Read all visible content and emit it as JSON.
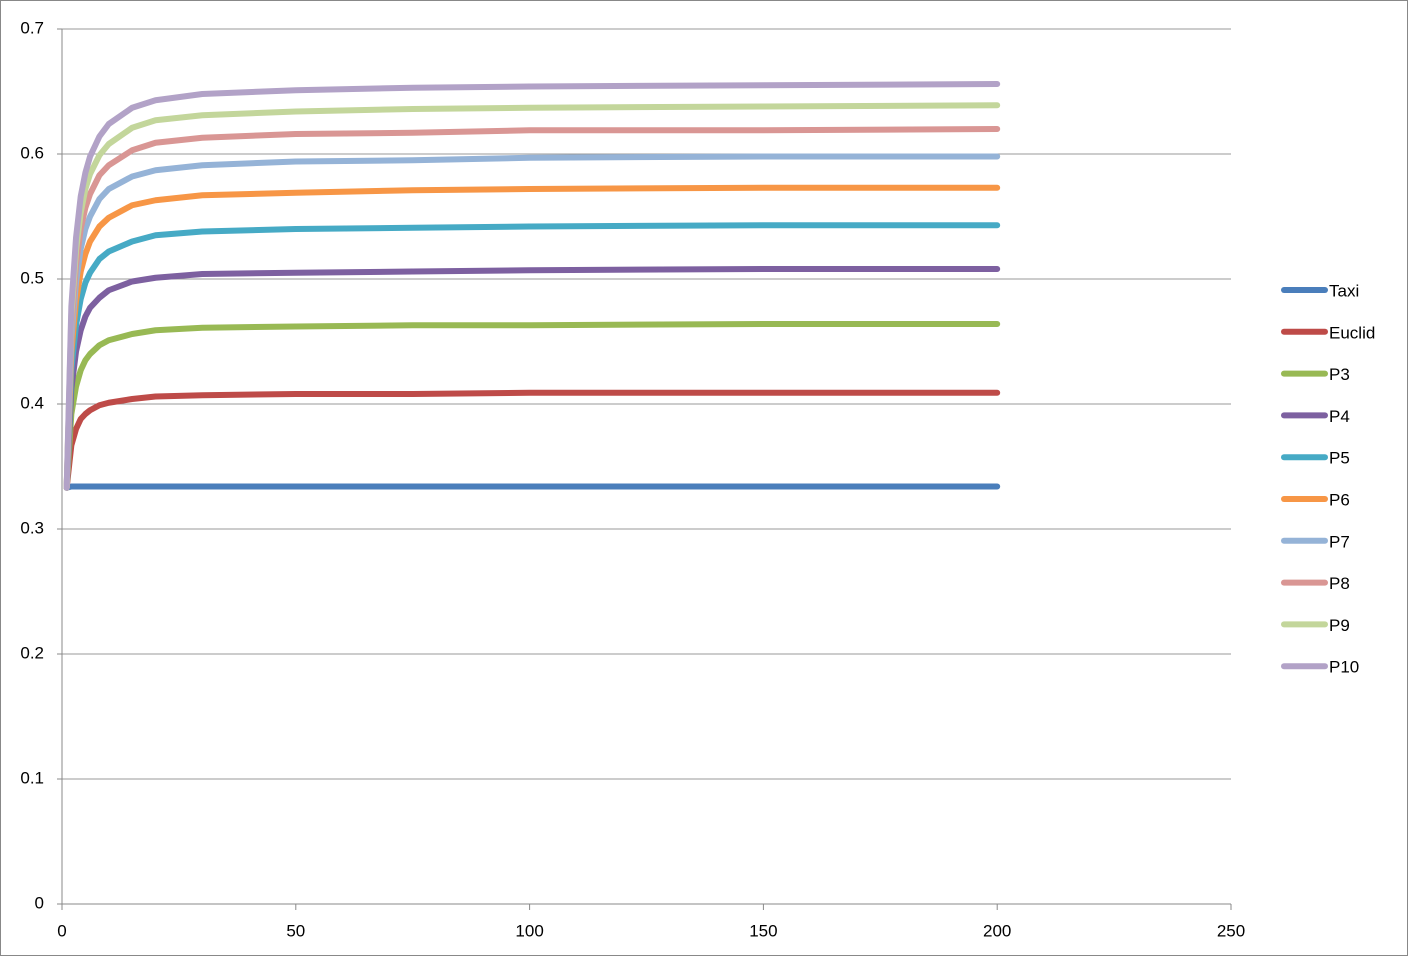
{
  "chart_data": {
    "type": "line",
    "x": [
      1,
      2,
      3,
      4,
      5,
      6,
      8,
      10,
      15,
      20,
      30,
      50,
      75,
      100,
      150,
      200
    ],
    "xlim": [
      0,
      250
    ],
    "xticks": [
      0,
      50,
      100,
      150,
      200,
      250
    ],
    "ylim": [
      0,
      0.7
    ],
    "yticks": [
      0,
      0.1,
      0.2,
      0.3,
      0.4,
      0.5,
      0.6,
      0.7
    ],
    "grid": true,
    "legend": "right",
    "series": [
      {
        "name": "Taxi",
        "color": "#4a7ebb",
        "values": [
          0.333,
          0.334,
          0.334,
          0.334,
          0.334,
          0.334,
          0.334,
          0.334,
          0.334,
          0.334,
          0.334,
          0.334,
          0.334,
          0.334,
          0.334,
          0.334
        ]
      },
      {
        "name": "Euclid",
        "color": "#be4b48",
        "values": [
          0.333,
          0.367,
          0.38,
          0.388,
          0.392,
          0.395,
          0.399,
          0.401,
          0.404,
          0.406,
          0.407,
          0.408,
          0.408,
          0.409,
          0.409,
          0.409
        ]
      },
      {
        "name": "P3",
        "color": "#98b954",
        "values": [
          0.333,
          0.392,
          0.414,
          0.427,
          0.435,
          0.44,
          0.447,
          0.451,
          0.456,
          0.459,
          0.461,
          0.462,
          0.463,
          0.463,
          0.464,
          0.464
        ]
      },
      {
        "name": "P4",
        "color": "#7d60a0",
        "values": [
          0.333,
          0.412,
          0.442,
          0.459,
          0.47,
          0.477,
          0.485,
          0.491,
          0.498,
          0.501,
          0.504,
          0.505,
          0.506,
          0.507,
          0.508,
          0.508
        ]
      },
      {
        "name": "P5",
        "color": "#46aac5",
        "values": [
          0.333,
          0.428,
          0.463,
          0.484,
          0.497,
          0.505,
          0.516,
          0.522,
          0.53,
          0.535,
          0.538,
          0.54,
          0.541,
          0.542,
          0.543,
          0.543
        ]
      },
      {
        "name": "P6",
        "color": "#f79646",
        "values": [
          0.333,
          0.441,
          0.482,
          0.506,
          0.52,
          0.53,
          0.542,
          0.549,
          0.559,
          0.563,
          0.567,
          0.569,
          0.571,
          0.572,
          0.573,
          0.573
        ]
      },
      {
        "name": "P7",
        "color": "#95b3d7",
        "values": [
          0.333,
          0.452,
          0.497,
          0.524,
          0.54,
          0.55,
          0.564,
          0.572,
          0.582,
          0.587,
          0.591,
          0.594,
          0.595,
          0.597,
          0.598,
          0.598
        ]
      },
      {
        "name": "P8",
        "color": "#d99694",
        "values": [
          0.333,
          0.462,
          0.511,
          0.54,
          0.557,
          0.568,
          0.583,
          0.591,
          0.603,
          0.609,
          0.613,
          0.616,
          0.617,
          0.619,
          0.619,
          0.62
        ]
      },
      {
        "name": "P9",
        "color": "#c3d69b",
        "values": [
          0.333,
          0.471,
          0.523,
          0.553,
          0.572,
          0.584,
          0.599,
          0.608,
          0.621,
          0.627,
          0.631,
          0.634,
          0.636,
          0.637,
          0.638,
          0.639
        ]
      },
      {
        "name": "P10",
        "color": "#b2a2c7",
        "values": [
          0.333,
          0.478,
          0.533,
          0.566,
          0.585,
          0.598,
          0.614,
          0.624,
          0.637,
          0.643,
          0.648,
          0.651,
          0.653,
          0.654,
          0.655,
          0.656
        ]
      }
    ]
  }
}
